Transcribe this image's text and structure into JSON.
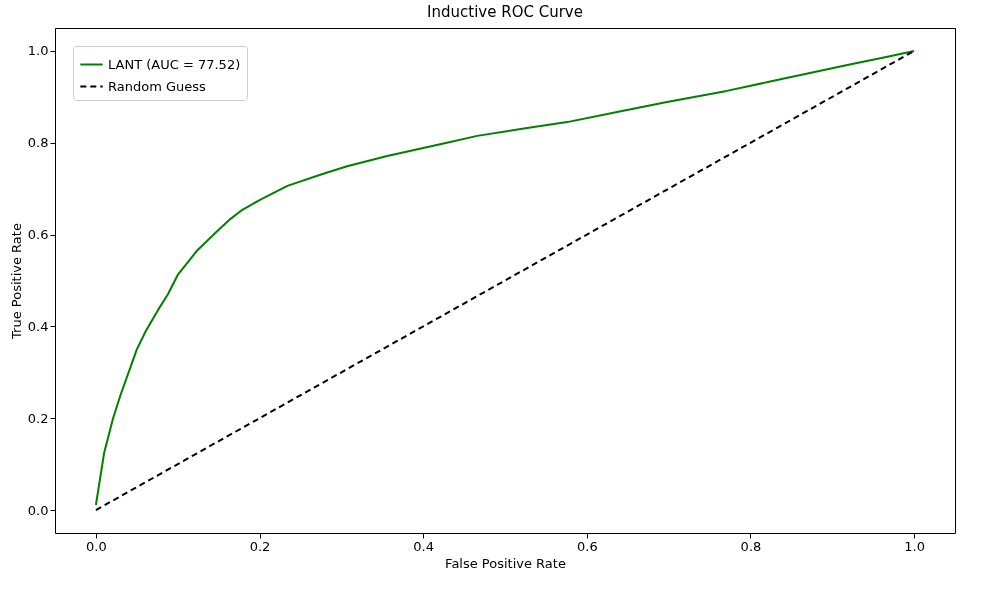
{
  "chart_data": {
    "type": "line",
    "title": "Inductive ROC Curve",
    "xlabel": "False Positive Rate",
    "ylabel": "True Positive Rate",
    "xlim": [
      -0.05,
      1.05
    ],
    "ylim": [
      -0.05,
      1.05
    ],
    "xticks": [
      {
        "value": 0,
        "label": "0.0"
      },
      {
        "value": 0.2,
        "label": "0.2"
      },
      {
        "value": 0.4,
        "label": "0.4"
      },
      {
        "value": 0.6,
        "label": "0.6"
      },
      {
        "value": 0.8,
        "label": "0.8"
      },
      {
        "value": 1,
        "label": "1.0"
      }
    ],
    "yticks": [
      {
        "value": 0,
        "label": "0.0"
      },
      {
        "value": 0.2,
        "label": "0.2"
      },
      {
        "value": 0.4,
        "label": "0.4"
      },
      {
        "value": 0.6,
        "label": "0.6"
      },
      {
        "value": 0.8,
        "label": "0.8"
      },
      {
        "value": 1,
        "label": "1.0"
      }
    ],
    "grid": false,
    "legend": "top left",
    "marker": "none",
    "series": [
      {
        "name": "LANT (AUC = 77.52)",
        "color": "#008000",
        "line_style": "solid",
        "x": [
          0,
          0.01,
          0.021,
          0.03,
          0.04,
          0.05,
          0.061,
          0.076,
          0.088,
          0.1,
          0.124,
          0.152,
          0.163,
          0.179,
          0.2,
          0.234,
          0.277,
          0.307,
          0.356,
          0.429,
          0.466,
          0.527,
          0.576,
          0.637,
          0.698,
          0.771,
          0.844,
          0.917,
          0.966,
          1
        ],
        "values": [
          0.011,
          0.124,
          0.2,
          0.25,
          0.3,
          0.35,
          0.39,
          0.436,
          0.47,
          0.512,
          0.566,
          0.614,
          0.632,
          0.654,
          0.675,
          0.706,
          0.732,
          0.749,
          0.771,
          0.8,
          0.815,
          0.832,
          0.845,
          0.867,
          0.889,
          0.913,
          0.941,
          0.969,
          0.987,
          1
        ]
      },
      {
        "name": "Random Guess",
        "color": "#000000",
        "line_style": "dashed",
        "x": [
          0,
          1
        ],
        "values": [
          0,
          1
        ]
      }
    ]
  }
}
